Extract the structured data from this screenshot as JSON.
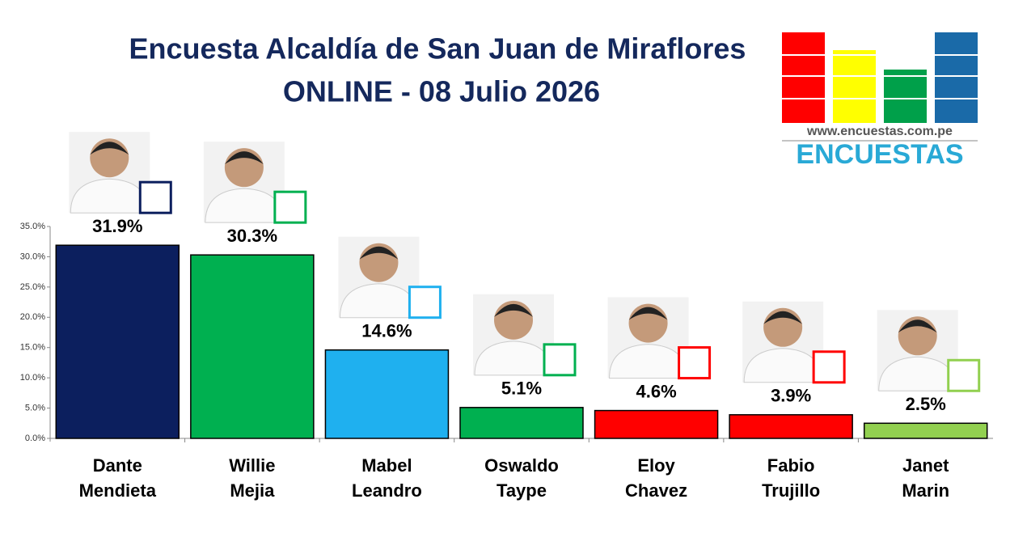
{
  "chart_data": {
    "type": "bar",
    "title": "Encuesta Alcaldía de San Juan de Miraflores",
    "subtitle": "ONLINE - 08 Julio 2026",
    "categories": [
      "Dante Mendieta",
      "Willie Mejia",
      "Mabel Leandro",
      "Oswaldo Taype",
      "Eloy Chavez",
      "Fabio Trujillo",
      "Janet Marin"
    ],
    "values": [
      31.9,
      30.3,
      14.6,
      5.1,
      4.6,
      3.9,
      2.5
    ],
    "value_labels": [
      "31.9%",
      "30.3%",
      "14.6%",
      "5.1%",
      "4.6%",
      "3.9%",
      "2.5%"
    ],
    "colors": [
      "#0c1f5e",
      "#00b050",
      "#1fb0ef",
      "#00b050",
      "#ff0000",
      "#ff0000",
      "#92d050"
    ],
    "ylim": [
      0,
      35
    ],
    "yticks": [
      {
        "value": 0,
        "label": "0.0%"
      },
      {
        "value": 5,
        "label": "5.0%"
      },
      {
        "value": 10,
        "label": "10.0%"
      },
      {
        "value": 15,
        "label": "15.0%"
      },
      {
        "value": 20,
        "label": "20.0%"
      },
      {
        "value": 25,
        "label": "25.0%"
      },
      {
        "value": 30,
        "label": "30.0%"
      },
      {
        "value": 35,
        "label": "35.0%"
      }
    ],
    "grid": false
  },
  "logo": {
    "url": "www.encuestas.com.pe",
    "name": "ENCUESTAS"
  }
}
